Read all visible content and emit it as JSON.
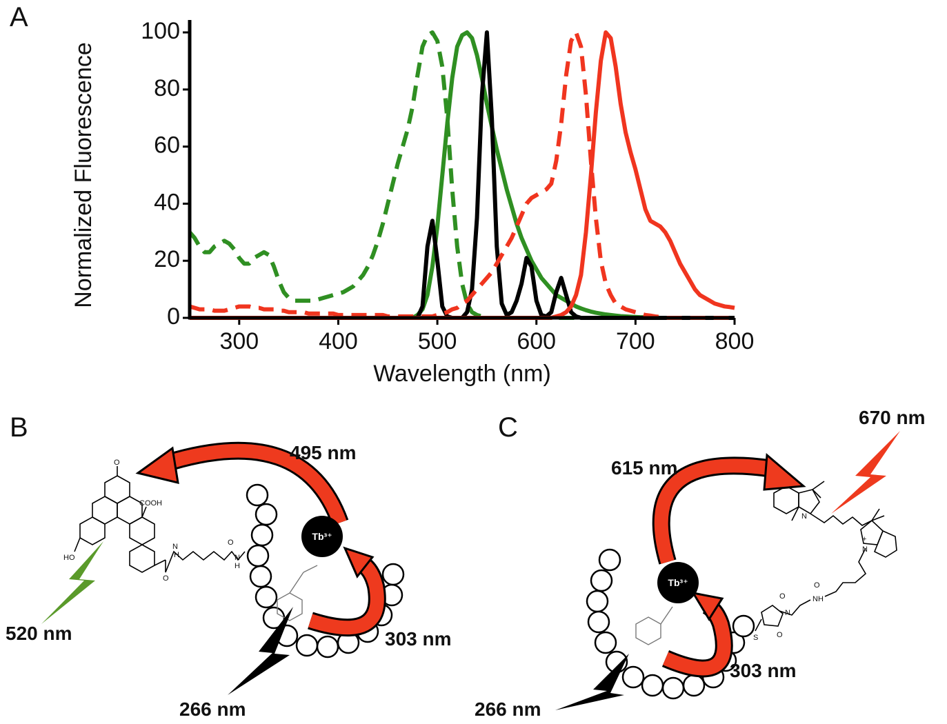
{
  "chart_data": {
    "type": "line",
    "xlabel": "Wavelength (nm)",
    "ylabel": "Normalized Fluorescence",
    "xlim": [
      250,
      800
    ],
    "ylim": [
      0,
      100
    ],
    "xticks": [
      300,
      400,
      500,
      600,
      700,
      800
    ],
    "yticks": [
      0,
      20,
      40,
      60,
      80,
      100
    ],
    "x": [
      250,
      255,
      260,
      265,
      270,
      275,
      280,
      285,
      290,
      295,
      300,
      305,
      310,
      315,
      320,
      325,
      330,
      335,
      340,
      345,
      350,
      355,
      360,
      365,
      370,
      375,
      380,
      385,
      390,
      395,
      400,
      405,
      410,
      415,
      420,
      425,
      430,
      435,
      440,
      445,
      450,
      455,
      460,
      465,
      470,
      475,
      480,
      485,
      490,
      495,
      500,
      505,
      510,
      515,
      520,
      525,
      530,
      535,
      540,
      545,
      550,
      555,
      560,
      565,
      570,
      575,
      580,
      585,
      590,
      595,
      600,
      605,
      610,
      615,
      620,
      625,
      630,
      635,
      640,
      645,
      650,
      655,
      660,
      665,
      670,
      675,
      680,
      685,
      690,
      695,
      700,
      705,
      710,
      715,
      720,
      725,
      730,
      735,
      740,
      745,
      750,
      755,
      760,
      765,
      770,
      775,
      780,
      785,
      790,
      795,
      800
    ],
    "series": [
      {
        "color": "#2f8f22",
        "dashed": true,
        "values": [
          30,
          28,
          25,
          23,
          23,
          25,
          26,
          27,
          26,
          24,
          21,
          19,
          19,
          21,
          22,
          23,
          22,
          18,
          13,
          9,
          7,
          6,
          6,
          6,
          6,
          6,
          6.5,
          7,
          7.5,
          8,
          8.5,
          9,
          10,
          11,
          13,
          15,
          18,
          22,
          27,
          33,
          40,
          47,
          54,
          60,
          66,
          74,
          85,
          95,
          99,
          100,
          97,
          88,
          70,
          45,
          25,
          12,
          5,
          2,
          1,
          0.5,
          0,
          0,
          0,
          0,
          0,
          0,
          0,
          0,
          0,
          0,
          0,
          0,
          0,
          0,
          0,
          0,
          0,
          0,
          0,
          0,
          0,
          0,
          0,
          0,
          0,
          0,
          0,
          0,
          0,
          0,
          0,
          0,
          0,
          0,
          0,
          0,
          0,
          0,
          0,
          0,
          0,
          0,
          0,
          0,
          0,
          0,
          0,
          0,
          0,
          0,
          0
        ]
      },
      {
        "color": "#2f8f22",
        "dashed": false,
        "values": [
          0,
          0,
          0,
          0,
          0,
          0,
          0,
          0,
          0,
          0,
          0,
          0,
          0,
          0,
          0,
          0,
          0,
          0,
          0,
          0,
          0,
          0,
          0,
          0,
          0,
          0,
          0,
          0,
          0,
          0,
          0,
          0,
          0,
          0,
          0,
          0,
          0,
          0,
          0,
          0,
          0,
          0,
          0,
          0,
          0,
          0,
          1,
          3,
          8,
          18,
          32,
          50,
          68,
          84,
          95,
          99,
          100,
          98,
          92,
          84,
          75,
          67,
          59,
          52,
          45,
          39,
          33,
          28,
          24,
          20,
          17,
          14,
          12,
          10,
          8,
          7,
          6,
          5,
          4,
          3.3,
          2.7,
          2.2,
          1.8,
          1.5,
          1.2,
          1,
          0.8,
          0.6,
          0.5,
          0.4,
          0.3,
          0.2,
          0.2,
          0.1,
          0.1,
          0,
          0,
          0,
          0,
          0,
          0,
          0,
          0,
          0,
          0,
          0,
          0,
          0,
          0,
          0,
          0
        ]
      },
      {
        "color": "#000000",
        "dashed": false,
        "values": [
          0,
          0,
          0,
          0,
          0,
          0,
          0,
          0,
          0,
          0,
          0,
          0,
          0,
          0,
          0,
          0,
          0,
          0,
          0,
          0,
          0,
          0,
          0,
          0,
          0,
          0,
          0,
          0,
          0,
          0,
          0,
          0,
          0,
          0,
          0,
          0,
          0,
          0,
          0,
          0,
          0,
          0,
          0,
          0,
          0,
          0,
          0,
          4,
          25,
          34,
          20,
          4,
          0.5,
          0,
          0,
          0,
          2,
          10,
          35,
          78,
          100,
          70,
          25,
          5,
          1,
          2,
          6,
          12,
          21,
          18,
          6,
          1,
          0.5,
          2,
          9,
          14,
          8,
          2,
          0.5,
          0,
          0,
          0,
          0,
          0,
          0,
          0,
          0,
          0,
          0,
          0,
          0,
          0,
          0,
          0,
          0,
          0,
          0,
          0,
          0,
          0,
          0,
          0,
          0,
          0,
          0,
          0,
          0,
          0,
          0,
          0,
          0
        ]
      },
      {
        "color": "#f0351f",
        "dashed": true,
        "values": [
          4,
          3.5,
          3,
          3,
          3,
          2.5,
          2.5,
          2.5,
          3,
          3.5,
          4,
          4,
          4,
          3.5,
          3.5,
          3,
          3,
          3,
          2.5,
          2.5,
          2,
          2,
          2,
          2,
          1.5,
          1.5,
          1.5,
          1.5,
          1.5,
          1.5,
          1,
          1,
          1,
          1,
          1,
          1,
          1,
          1,
          1,
          1,
          0.5,
          0.5,
          0.5,
          0.5,
          0.5,
          0.5,
          0.5,
          0.5,
          0.5,
          0.5,
          1,
          1.5,
          2,
          3,
          3.5,
          5,
          6,
          8,
          10,
          12,
          14,
          16,
          19,
          22,
          25,
          28,
          32,
          36,
          40,
          42,
          43,
          44,
          45,
          47,
          55,
          68,
          85,
          97,
          100,
          95,
          78,
          55,
          35,
          20,
          12,
          8,
          5,
          4,
          3,
          2.5,
          2,
          1.5,
          1,
          0.8,
          0.5,
          0.3,
          0,
          0,
          0,
          0,
          0,
          0,
          0,
          0,
          0,
          0,
          0,
          0,
          0,
          0,
          0
        ]
      },
      {
        "color": "#f0351f",
        "dashed": false,
        "values": [
          0,
          0,
          0,
          0,
          0,
          0,
          0,
          0,
          0,
          0,
          0,
          0,
          0,
          0,
          0,
          0,
          0,
          0,
          0,
          0,
          0,
          0,
          0,
          0,
          0,
          0,
          0,
          0,
          0,
          0,
          0,
          0,
          0,
          0,
          0,
          0,
          0,
          0,
          0,
          0,
          0,
          0,
          0,
          0,
          0,
          0,
          0,
          0,
          0,
          0,
          0,
          0,
          0,
          0,
          0,
          0,
          0,
          0,
          0,
          0,
          0,
          0,
          0,
          0,
          0,
          0,
          0,
          0,
          0,
          0,
          0,
          0,
          0,
          0,
          0.5,
          1,
          2,
          4,
          8,
          15,
          30,
          50,
          72,
          90,
          100,
          98,
          88,
          75,
          65,
          58,
          52,
          45,
          38,
          34,
          33,
          32,
          30,
          27,
          23,
          19,
          16,
          13,
          10,
          8,
          7,
          6,
          5,
          4.5,
          4,
          3.8,
          3.5
        ]
      }
    ]
  },
  "panel_labels": [
    "A",
    "B",
    "C"
  ],
  "diagram_b": {
    "metal": "Tb³⁺",
    "labels": [
      "495 nm",
      "520 nm",
      "303 nm",
      "266 nm"
    ],
    "chem_labels": [
      "O",
      "COOH",
      "HO",
      "O",
      "N",
      "H",
      "O",
      "N",
      "H"
    ]
  },
  "diagram_c": {
    "metal": "Tb³⁺",
    "labels": [
      "670 nm",
      "615 nm",
      "303 nm",
      "266 nm"
    ],
    "chem_labels": [
      "N",
      "N",
      "+",
      "NH",
      "O",
      "O",
      "N",
      "O",
      "S"
    ]
  }
}
